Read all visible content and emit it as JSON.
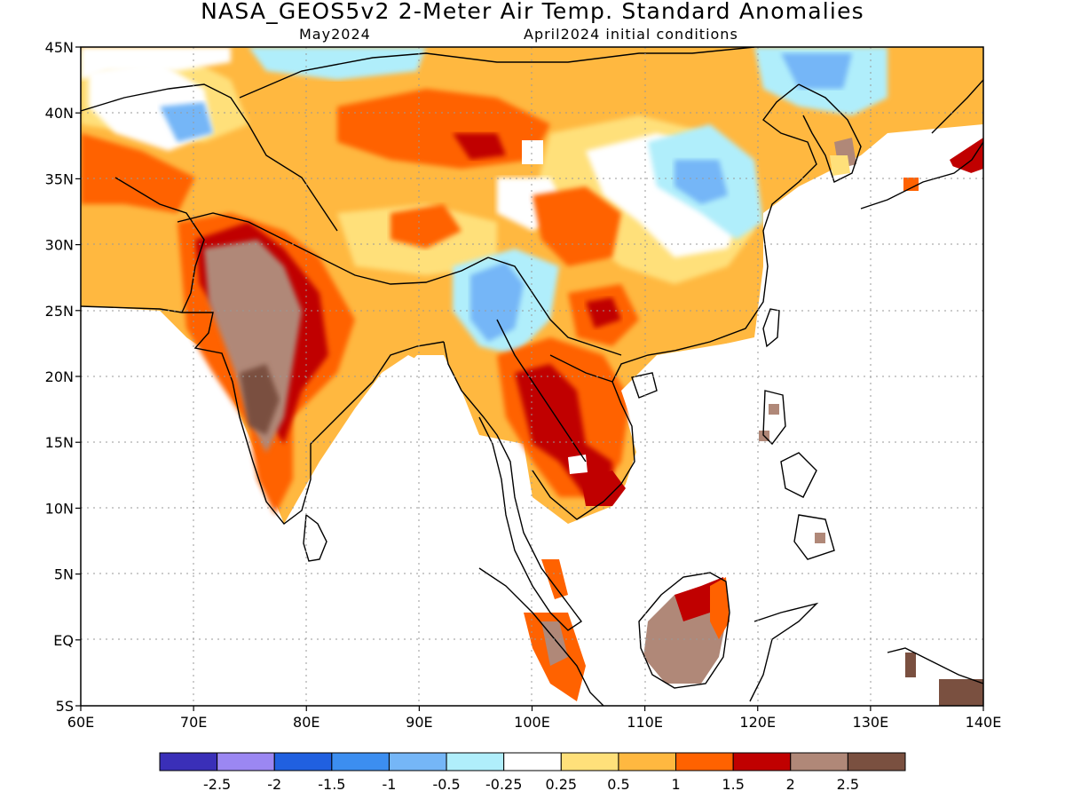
{
  "header": {
    "title": "NASA_GEOS5v2 2-Meter Air Temp. Standard Anomalies",
    "month": "May2024",
    "init": "April2024 initial conditions"
  },
  "map": {
    "lon_range": [
      60,
      140
    ],
    "lat_range": [
      -5,
      45
    ],
    "lon_labels": [
      "60E",
      "70E",
      "80E",
      "90E",
      "100E",
      "110E",
      "120E",
      "130E",
      "140E"
    ],
    "lat_labels": [
      "45N",
      "40N",
      "35N",
      "30N",
      "25N",
      "20N",
      "15N",
      "10N",
      "5N",
      "EQ",
      "5S"
    ]
  },
  "colorbar": {
    "colors": [
      "#3a2fb8",
      "#9b87f2",
      "#2060e0",
      "#3c8ef0",
      "#75b6f7",
      "#b0eefb",
      "#ffffff",
      "#ffe07a",
      "#ffb840",
      "#ff6200",
      "#c00000",
      "#b08878",
      "#7a5040"
    ],
    "labels": [
      "-2.5",
      "-2",
      "-1.5",
      "-1",
      "-0.5",
      "-0.25",
      "0.25",
      "0.5",
      "1",
      "1.5",
      "2",
      "2.5"
    ]
  }
}
